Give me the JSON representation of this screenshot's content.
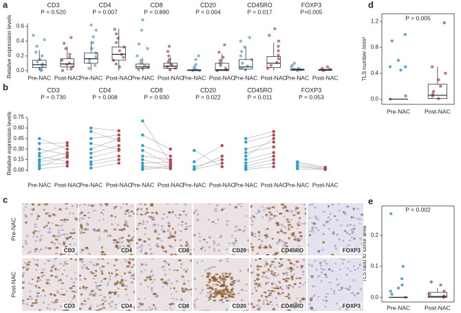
{
  "chart_data": [
    {
      "panel": "a",
      "type": "box",
      "y_label": "Relative expression levels",
      "ylim": [
        -0.03,
        0.68
      ],
      "yticks": [
        {
          "value": 0,
          "label": "0.0"
        },
        {
          "value": 0.2,
          "label": "0.2"
        },
        {
          "value": 0.4,
          "label": "0.4"
        },
        {
          "value": 0.6,
          "label": "0.6"
        }
      ],
      "colors": [
        "#6a9ec0",
        "#a85a55"
      ],
      "groups": [
        {
          "name": "CD3",
          "color": "#222222",
          "p_label": "P = 0.520",
          "categories": [
            "Pre-NAC",
            "Post-NAC"
          ],
          "boxes": [
            {
              "min": 0,
              "q1": 0.04,
              "median": 0.08,
              "q3": 0.14,
              "max": 0.28,
              "points": [
                0.48,
                0.42,
                0.33,
                0.25,
                0.2,
                0.15,
                0.12,
                0.09,
                0.06,
                0.03,
                0.01,
                0
              ]
            },
            {
              "min": 0,
              "q1": 0.05,
              "median": 0.09,
              "q3": 0.16,
              "max": 0.33,
              "points": [
                0.45,
                0.37,
                0.3,
                0.22,
                0.18,
                0.14,
                0.1,
                0.08,
                0.05,
                0.02,
                0
              ]
            }
          ]
        },
        {
          "name": "CD4",
          "color": "#e8202a",
          "p_label": "P = 0.007",
          "categories": [
            "Pre-NAC",
            "Post-NAC"
          ],
          "boxes": [
            {
              "min": 0,
              "q1": 0.1,
              "median": 0.16,
              "q3": 0.24,
              "max": 0.4,
              "points": [
                0.62,
                0.55,
                0.46,
                0.38,
                0.3,
                0.24,
                0.19,
                0.15,
                0.11,
                0.07,
                0.03
              ]
            },
            {
              "min": 0,
              "q1": 0.14,
              "median": 0.22,
              "q3": 0.32,
              "max": 0.57,
              "points": [
                0.56,
                0.5,
                0.44,
                0.38,
                0.32,
                0.27,
                0.22,
                0.18,
                0.14,
                0.09,
                0.05
              ]
            }
          ]
        },
        {
          "name": "CD8",
          "color": "#222222",
          "p_label": "P = 0.890",
          "categories": [
            "Pre-NAC",
            "Post-NAC"
          ],
          "boxes": [
            {
              "min": 0,
              "q1": 0.03,
              "median": 0.05,
              "q3": 0.09,
              "max": 0.17,
              "points": [
                0.69,
                0.55,
                0.36,
                0.3,
                0.2,
                0.14,
                0.1,
                0.07,
                0.05,
                0.03,
                0.01
              ]
            },
            {
              "min": 0,
              "q1": 0.03,
              "median": 0.06,
              "q3": 0.1,
              "max": 0.18,
              "points": [
                0.33,
                0.26,
                0.2,
                0.15,
                0.12,
                0.09,
                0.07,
                0.05,
                0.03,
                0.01
              ]
            }
          ]
        },
        {
          "name": "CD20",
          "color": "#e8202a",
          "p_label": "P = 0.004",
          "categories": [
            "Pre-NAC",
            "Post-NAC"
          ],
          "boxes": [
            {
              "min": 0,
              "q1": 0,
              "median": 0.005,
              "q3": 0.01,
              "max": 0.02,
              "points": [
                0.2,
                0.15,
                0.08,
                0.05,
                0.03,
                0.01,
                0,
                0
              ]
            },
            {
              "min": 0,
              "q1": 0,
              "median": 0.01,
              "q3": 0.1,
              "max": 0.23,
              "points": [
                0.35,
                0.25,
                0.18,
                0.14,
                0.1,
                0.07,
                0.03,
                0.01,
                0
              ]
            }
          ]
        },
        {
          "name": "CD45RO",
          "color": "#e8202a",
          "p_label": "P = 0.017",
          "categories": [
            "Pre-NAC",
            "Post-NAC"
          ],
          "boxes": [
            {
              "min": 0,
              "q1": 0.02,
              "median": 0.05,
              "q3": 0.15,
              "max": 0.32,
              "points": [
                0.45,
                0.4,
                0.32,
                0.26,
                0.2,
                0.15,
                0.1,
                0.06,
                0.03,
                0.01
              ]
            },
            {
              "min": 0,
              "q1": 0.04,
              "median": 0.1,
              "q3": 0.19,
              "max": 0.38,
              "points": [
                0.57,
                0.48,
                0.4,
                0.33,
                0.27,
                0.21,
                0.16,
                0.11,
                0.07,
                0.03
              ]
            }
          ]
        },
        {
          "name": "FOXP3",
          "color": "#2a3b9a",
          "p_label": "P=0.005",
          "categories": [
            "Pre-NAC",
            "Post-NAC"
          ],
          "boxes": [
            {
              "min": 0,
              "q1": 0.005,
              "median": 0.01,
              "q3": 0.02,
              "max": 0.04,
              "points": [
                0.1,
                0.07,
                0.05,
                0.03,
                0.02,
                0.01,
                0
              ]
            },
            {
              "min": 0,
              "q1": 0.003,
              "median": 0.008,
              "q3": 0.015,
              "max": 0.03,
              "points": [
                0.05,
                0.03,
                0.02,
                0.01,
                0
              ]
            }
          ]
        }
      ]
    },
    {
      "panel": "b",
      "type": "paired",
      "y_label": "Relative expression levels",
      "ylim": [
        -0.02,
        0.78
      ],
      "yticks": [
        {
          "value": 0,
          "label": "0.00"
        },
        {
          "value": 0.15,
          "label": "0.15"
        },
        {
          "value": 0.3,
          "label": "0.30"
        },
        {
          "value": 0.45,
          "label": "0.45"
        },
        {
          "value": 0.6,
          "label": "0.60"
        },
        {
          "value": 0.75,
          "label": "0.75"
        }
      ],
      "colors": [
        "#2ba0c8",
        "#b5474b"
      ],
      "groups": [
        {
          "name": "CD3",
          "color": "#222222",
          "p_label": "P = 0.730",
          "categories": [
            "Pre-NAC",
            "Post-NAC"
          ],
          "pre": [
            0.45,
            0.38,
            0.3,
            0.24,
            0.2,
            0.15,
            0.12,
            0.08,
            0.05,
            0.02
          ],
          "post": [
            0.3,
            0.39,
            0.22,
            0.35,
            0.12,
            0.25,
            0.18,
            0.1,
            0.2,
            0.06
          ]
        },
        {
          "name": "CD4",
          "color": "#e8202a",
          "p_label": "P = 0.008",
          "categories": [
            "Pre-NAC",
            "Post-NAC"
          ],
          "pre": [
            0.6,
            0.55,
            0.45,
            0.38,
            0.3,
            0.24,
            0.18,
            0.12,
            0.08,
            0.03
          ],
          "post": [
            0.56,
            0.42,
            0.5,
            0.3,
            0.45,
            0.35,
            0.28,
            0.2,
            0.15,
            0.1
          ]
        },
        {
          "name": "CD8",
          "color": "#222222",
          "p_label": "P = 0.930",
          "categories": [
            "Pre-NAC",
            "Post-NAC"
          ],
          "pre": [
            0.7,
            0.5,
            0.35,
            0.28,
            0.2,
            0.15,
            0.1,
            0.06,
            0.03,
            0.01
          ],
          "post": [
            0.1,
            0.3,
            0.2,
            0.08,
            0.15,
            0.05,
            0.12,
            0.02,
            0.06,
            0.04
          ]
        },
        {
          "name": "CD20",
          "color": "#e8202a",
          "p_label": "P = 0.022",
          "categories": [
            "Pre-NAC",
            "Post-NAC"
          ],
          "pre": [
            0.28,
            0.12,
            0.05,
            0.02,
            0.01
          ],
          "post": [
            0.05,
            0.35,
            0.15,
            0.2,
            0.1
          ]
        },
        {
          "name": "CD45RO",
          "color": "#e8202a",
          "p_label": "P = 0.011",
          "categories": [
            "Pre-NAC",
            "Post-NAC"
          ],
          "pre": [
            0.45,
            0.4,
            0.3,
            0.25,
            0.2,
            0.15,
            0.1,
            0.06,
            0.03,
            0.01
          ],
          "post": [
            0.55,
            0.5,
            0.4,
            0.33,
            0.45,
            0.25,
            0.2,
            0.15,
            0.1,
            0.05
          ]
        },
        {
          "name": "FOXP3",
          "color": "#2a3b9a",
          "p_label": "P = 0.053",
          "categories": [
            "Pre-NAC",
            "Post-NAC"
          ],
          "pre": [
            0.12,
            0.1,
            0.07,
            0.05,
            0.02
          ],
          "post": [
            0.04,
            0.03,
            0.02,
            0.01,
            0.01
          ]
        }
      ]
    },
    {
      "panel": "d",
      "type": "box",
      "y_label": "TLS number /mm²",
      "frame": true,
      "ylim": [
        -0.08,
        1.32
      ],
      "yticks": [
        {
          "value": 0,
          "label": "0.0"
        },
        {
          "value": 0.4,
          "label": "0.4"
        },
        {
          "value": 0.8,
          "label": "0.8"
        },
        {
          "value": 1.2,
          "label": "1.2"
        }
      ],
      "colors": [
        "#2b8cbe",
        "#b5474b"
      ],
      "groups": [
        {
          "color": "#e8202a",
          "p_label": "P = 0.005",
          "categories": [
            "Pre-NAC",
            "Post-NAC"
          ],
          "boxes": [
            {
              "min": 0,
              "q1": 0,
              "median": 0,
              "q3": 0,
              "max": 0,
              "points": [
                1.0,
                0.9,
                0.6,
                0.5,
                0.5,
                0.45,
                0.05,
                0
              ]
            },
            {
              "min": 0,
              "q1": 0.01,
              "median": 0.06,
              "q3": 0.23,
              "max": 0.5,
              "points": [
                1.18,
                0.5,
                0.4,
                0.3,
                0.2,
                0.12,
                0.08,
                0.05,
                0.01
              ]
            }
          ]
        }
      ]
    },
    {
      "panel": "e",
      "type": "box",
      "y_label": "TLS ratio to tumor area",
      "frame": true,
      "ylim": [
        -0.015,
        0.295
      ],
      "yticks": [
        {
          "value": 0,
          "label": "0.0"
        },
        {
          "value": 0.1,
          "label": "0.1"
        },
        {
          "value": 0.2,
          "label": "0.2"
        }
      ],
      "colors": [
        "#2b8cbe",
        "#b5474b"
      ],
      "groups": [
        {
          "color": "#e8202a",
          "p_label": "P = 0.002",
          "categories": [
            "Pre-NAC",
            "Post-NAC"
          ],
          "boxes": [
            {
              "min": 0,
              "q1": 0,
              "median": 0,
              "q3": 0,
              "max": 0,
              "points": [
                0.27,
                0.1,
                0.06,
                0.04,
                0.03,
                0.02,
                0.01,
                0
              ]
            },
            {
              "min": 0,
              "q1": 0,
              "median": 0.003,
              "q3": 0.016,
              "max": 0.03,
              "points": [
                0.05,
                0.04,
                0.02,
                0.01,
                0.005,
                0
              ]
            }
          ]
        }
      ]
    }
  ],
  "ihc": {
    "panel": "c",
    "rows": [
      "Pre-NAC",
      "Post-NAC"
    ],
    "markers": [
      {
        "name": "CD3",
        "color": "#222222"
      },
      {
        "name": "CD4",
        "color": "#e8202a"
      },
      {
        "name": "CD8",
        "color": "#222222"
      },
      {
        "name": "CD20",
        "color": "#e8202a"
      },
      {
        "name": "CD45RO",
        "color": "#e8202a"
      },
      {
        "name": "FOXP3",
        "color": "#2a3b9a"
      }
    ]
  }
}
